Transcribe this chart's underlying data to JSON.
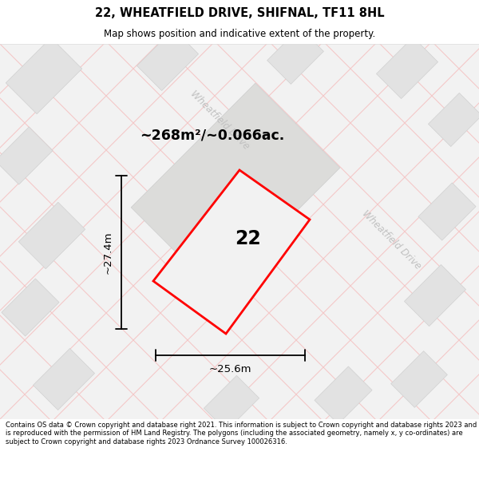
{
  "title": "22, WHEATFIELD DRIVE, SHIFNAL, TF11 8HL",
  "subtitle": "Map shows position and indicative extent of the property.",
  "disclaimer": "Contains OS data © Crown copyright and database right 2021. This information is subject to Crown copyright and database rights 2023 and is reproduced with the permission of HM Land Registry. The polygons (including the associated geometry, namely x, y co-ordinates) are subject to Crown copyright and database rights 2023 Ordnance Survey 100026316.",
  "area_label": "~268m²/~0.066ac.",
  "width_label": "~25.6m",
  "height_label": "~27.4m",
  "plot_number": "22",
  "map_bg": "#f2f2f2",
  "property_color": "#ff0000",
  "street_label_color": "#c0c0c0",
  "street_label": "Wheatfield Drive",
  "line_color": "#f5c8c8",
  "building_color": "#e2e2e2",
  "building_edge": "#d0d0d0"
}
